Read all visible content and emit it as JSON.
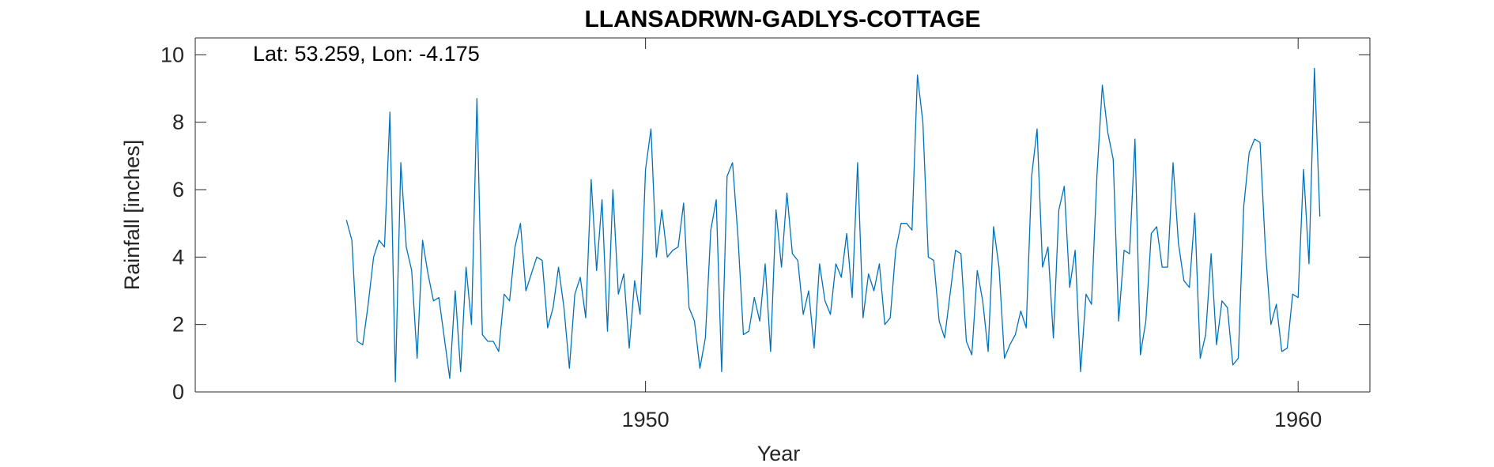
{
  "chart_data": {
    "type": "line",
    "title": "LLANSADRWN-GADLYS-COTTAGE",
    "annotation": "Lat: 53.259, Lon: -4.175",
    "xlabel": "Year",
    "ylabel": "Rainfall [inches]",
    "xlim": [
      1943.1,
      1961.1
    ],
    "ylim": [
      0,
      10.5
    ],
    "xticks": [
      1950,
      1960
    ],
    "xtick_labels": [
      "1950",
      "1960"
    ],
    "yticks": [
      0,
      2,
      4,
      6,
      8,
      10
    ],
    "ytick_labels": [
      "0",
      "2",
      "4",
      "6",
      "8",
      "10"
    ],
    "grid": false,
    "color": "#0072BD",
    "x_start": "1945-06",
    "x_step": "1 month",
    "series": [
      {
        "values": [
          5.1,
          4.5,
          1.5,
          1.4,
          2.6,
          4.0,
          4.5,
          4.3,
          8.3,
          0.3,
          6.8,
          4.3,
          3.6,
          1.0,
          4.5,
          3.5,
          2.7,
          2.8,
          1.6,
          0.4,
          3.0,
          0.6,
          3.7,
          2.0,
          8.7,
          1.7,
          1.5,
          1.5,
          1.2,
          2.9,
          2.7,
          4.3,
          5.0,
          3.0,
          3.5,
          4.0,
          3.9,
          1.9,
          2.5,
          3.7,
          2.5,
          0.7,
          2.9,
          3.4,
          2.2,
          6.3,
          3.6,
          5.7,
          1.8,
          6.0,
          2.9,
          3.5,
          1.3,
          3.3,
          2.3,
          6.6,
          7.8,
          4.0,
          5.4,
          4.0,
          4.2,
          4.3,
          5.6,
          2.5,
          2.1,
          0.7,
          1.6,
          4.8,
          5.7,
          0.6,
          6.4,
          6.8,
          4.6,
          1.7,
          1.8,
          2.8,
          2.1,
          3.8,
          1.2,
          5.4,
          3.7,
          5.9,
          4.1,
          3.9,
          2.3,
          3.0,
          1.3,
          3.8,
          2.7,
          2.3,
          3.8,
          3.4,
          4.7,
          2.8,
          6.8,
          2.2,
          3.5,
          3.0,
          3.8,
          2.0,
          2.2,
          4.2,
          5.0,
          5.0,
          4.8,
          9.4,
          8.0,
          4.0,
          3.9,
          2.1,
          1.6,
          2.9,
          4.2,
          4.1,
          1.5,
          1.1,
          3.6,
          2.7,
          1.2,
          4.9,
          3.7,
          1.0,
          1.4,
          1.7,
          2.4,
          1.9,
          6.4,
          7.8,
          3.7,
          4.3,
          1.6,
          5.4,
          6.1,
          3.1,
          4.2,
          0.6,
          2.9,
          2.6,
          6.4,
          9.1,
          7.7,
          6.9,
          2.1,
          4.2,
          4.1,
          7.5,
          1.1,
          2.1,
          4.7,
          4.9,
          3.7,
          3.7,
          6.8,
          4.4,
          3.3,
          3.1,
          5.3,
          1.0,
          1.7,
          4.1,
          1.4,
          2.7,
          2.5,
          0.8,
          1.0,
          5.5,
          7.1,
          7.5,
          7.4,
          4.2,
          2.0,
          2.6,
          1.2,
          1.3,
          2.9,
          2.8,
          6.6,
          3.8,
          9.6,
          5.2
        ]
      }
    ]
  }
}
